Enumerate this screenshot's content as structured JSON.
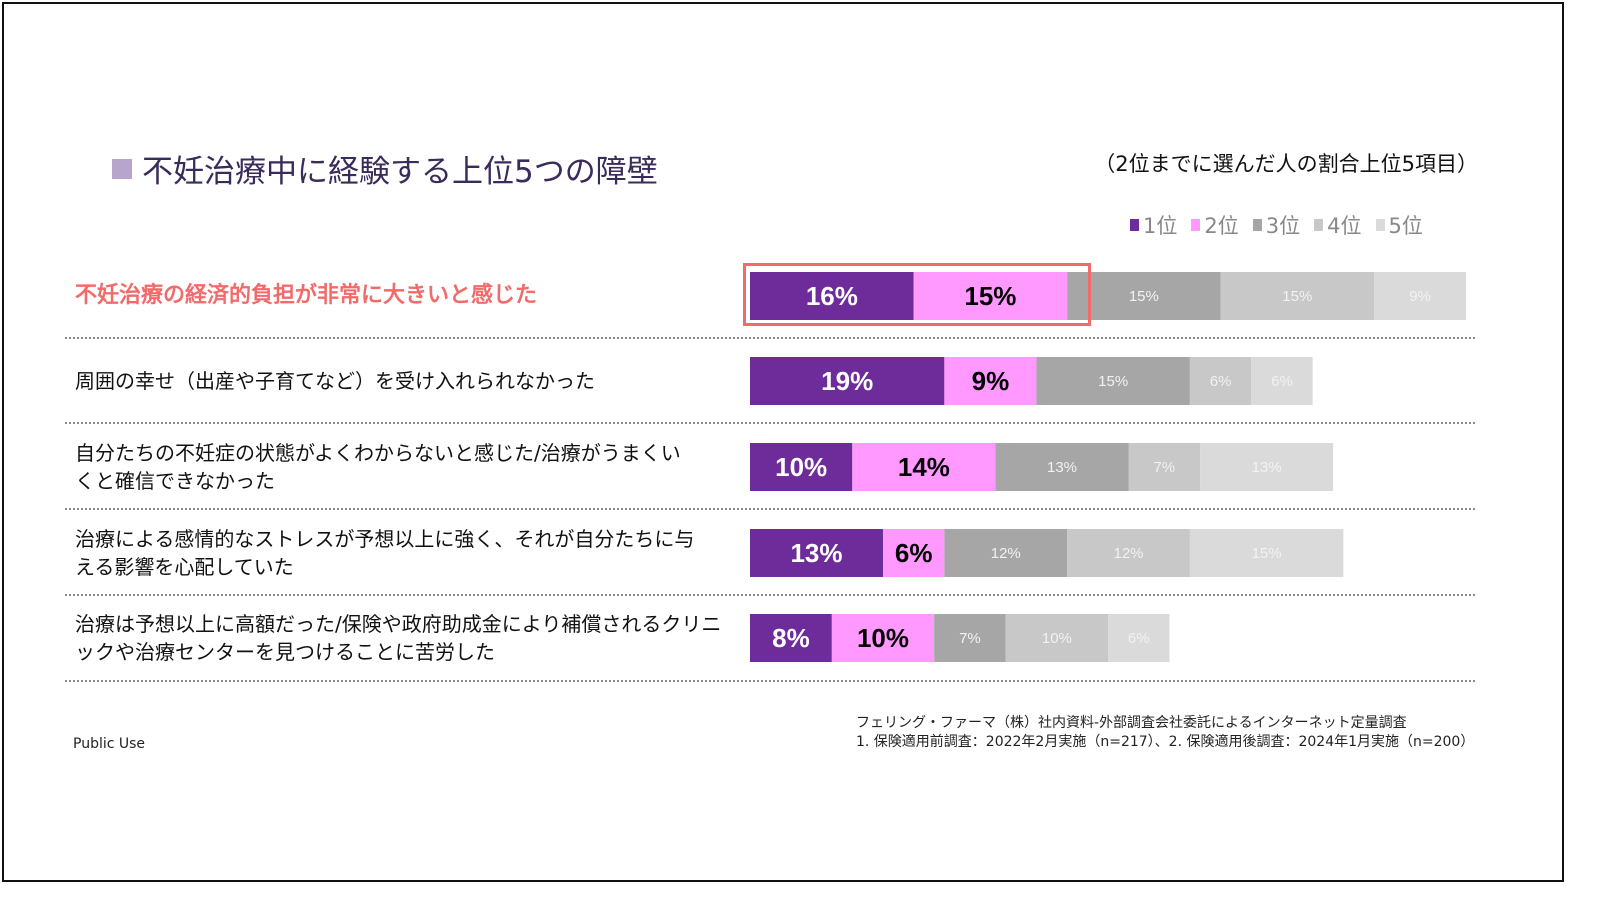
{
  "chart_data": {
    "type": "bar",
    "orientation": "horizontal",
    "stacked": true,
    "title": "不妊治療中に経験する上位5つの障壁",
    "subtitle": "（2位までに選んだ人の割合上位5項目）",
    "categories": [
      "不妊治療の経済的負担が非常に大きいと感じた",
      "周囲の幸せ（出産や子育てなど）を受け入れられなかった",
      "自分たちの不妊症の状態がよくわからないと感じた/治療がうまくいくと確信できなかった",
      "治療による感情的なストレスが予想以上に強く、それが自分たちに与える影響を心配していた",
      "治療は予想以上に高額だった/保険や政府助成金により補償されるクリニックや治療センターを見つけることに苦労した"
    ],
    "highlighted_category": 0,
    "series": [
      {
        "name": "1位",
        "color": "#6e2c9a",
        "values": [
          16,
          19,
          10,
          13,
          8
        ]
      },
      {
        "name": "2位",
        "color": "#ff99ff",
        "values": [
          15,
          9,
          14,
          6,
          10
        ]
      },
      {
        "name": "3位",
        "color": "#a6a6a6",
        "values": [
          15,
          15,
          13,
          12,
          7
        ]
      },
      {
        "name": "4位",
        "color": "#c8c8c8",
        "values": [
          15,
          6,
          7,
          12,
          10
        ]
      },
      {
        "name": "5位",
        "color": "#dadada",
        "values": [
          9,
          6,
          13,
          15,
          6
        ]
      }
    ],
    "unit": "%",
    "legend_position": "top-right",
    "grid": false
  },
  "footer": {
    "classification": "Public Use",
    "source_line1": "フェリング・ファーマ（株）社内資料-外部調査会社委託によるインターネット定量調査",
    "source_line2": "1. 保険適用前調査：2022年2月実施（n=217）、2. 保険適用後調査：2024年1月実施（n=200）"
  },
  "colors": {
    "title": "#3a2b5a",
    "highlight": "#f26b6b",
    "title_marker": "#b8a5cc"
  }
}
